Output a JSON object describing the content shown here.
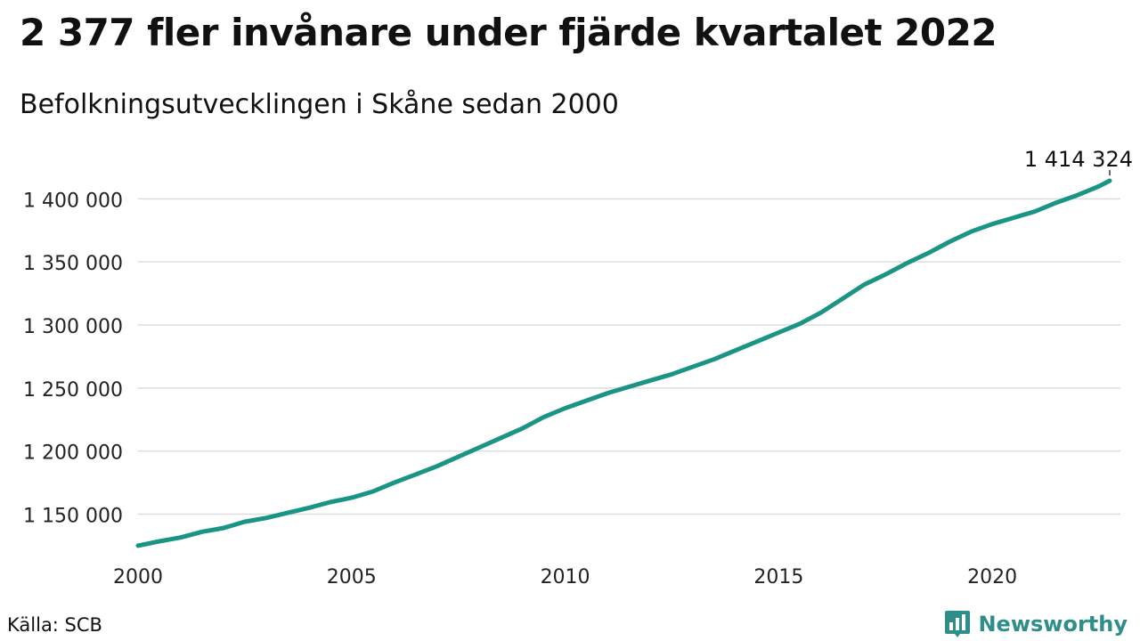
{
  "title": "2 377 fler invånare under fjärde kvartalet 2022",
  "subtitle": "Befolkningsutvecklingen i Skåne sedan 2000",
  "source": "Källa: SCB",
  "brand": "Newsworthy",
  "colors": {
    "line": "#1a9484",
    "grid": "#dddddd",
    "brand": "#2e8f8a"
  },
  "chart_data": {
    "type": "line",
    "xlabel": "",
    "ylabel": "",
    "xlim": [
      2000,
      2023
    ],
    "ylim": [
      1120000,
      1420000
    ],
    "x_ticks": [
      2000,
      2005,
      2010,
      2015,
      2020
    ],
    "x_tick_labels": [
      "2000",
      "2005",
      "2010",
      "2015",
      "2020"
    ],
    "y_ticks": [
      1150000,
      1200000,
      1250000,
      1300000,
      1350000,
      1400000
    ],
    "y_tick_labels": [
      "1 150 000",
      "1 200 000",
      "1 250 000",
      "1 300 000",
      "1 350 000",
      "1 400 000"
    ],
    "grid": true,
    "annotation": {
      "label": "1 414 324",
      "x": 2022.75,
      "y": 1414324
    },
    "series": [
      {
        "x": [
          2000.0,
          2000.5,
          2001.0,
          2001.5,
          2002.0,
          2002.5,
          2003.0,
          2003.5,
          2004.0,
          2004.5,
          2005.0,
          2005.5,
          2006.0,
          2006.5,
          2007.0,
          2007.5,
          2008.0,
          2008.5,
          2009.0,
          2009.5,
          2010.0,
          2010.5,
          2011.0,
          2011.5,
          2012.0,
          2012.5,
          2013.0,
          2013.5,
          2014.0,
          2014.5,
          2015.0,
          2015.5,
          2016.0,
          2016.5,
          2017.0,
          2017.5,
          2018.0,
          2018.5,
          2019.0,
          2019.5,
          2020.0,
          2020.5,
          2021.0,
          2021.5,
          2022.0,
          2022.5,
          2022.75
        ],
        "values": [
          1125000,
          1128500,
          1131500,
          1136000,
          1139000,
          1144000,
          1147000,
          1151000,
          1155000,
          1159500,
          1163000,
          1168000,
          1175000,
          1181500,
          1188000,
          1195500,
          1203000,
          1210500,
          1218000,
          1227000,
          1234000,
          1240000,
          1246000,
          1251000,
          1256000,
          1261000,
          1267000,
          1273000,
          1280000,
          1287000,
          1294000,
          1301000,
          1310000,
          1321000,
          1332000,
          1340000,
          1349000,
          1357000,
          1366000,
          1374000,
          1380000,
          1385000,
          1390000,
          1397000,
          1403000,
          1410000,
          1414324
        ]
      }
    ]
  }
}
